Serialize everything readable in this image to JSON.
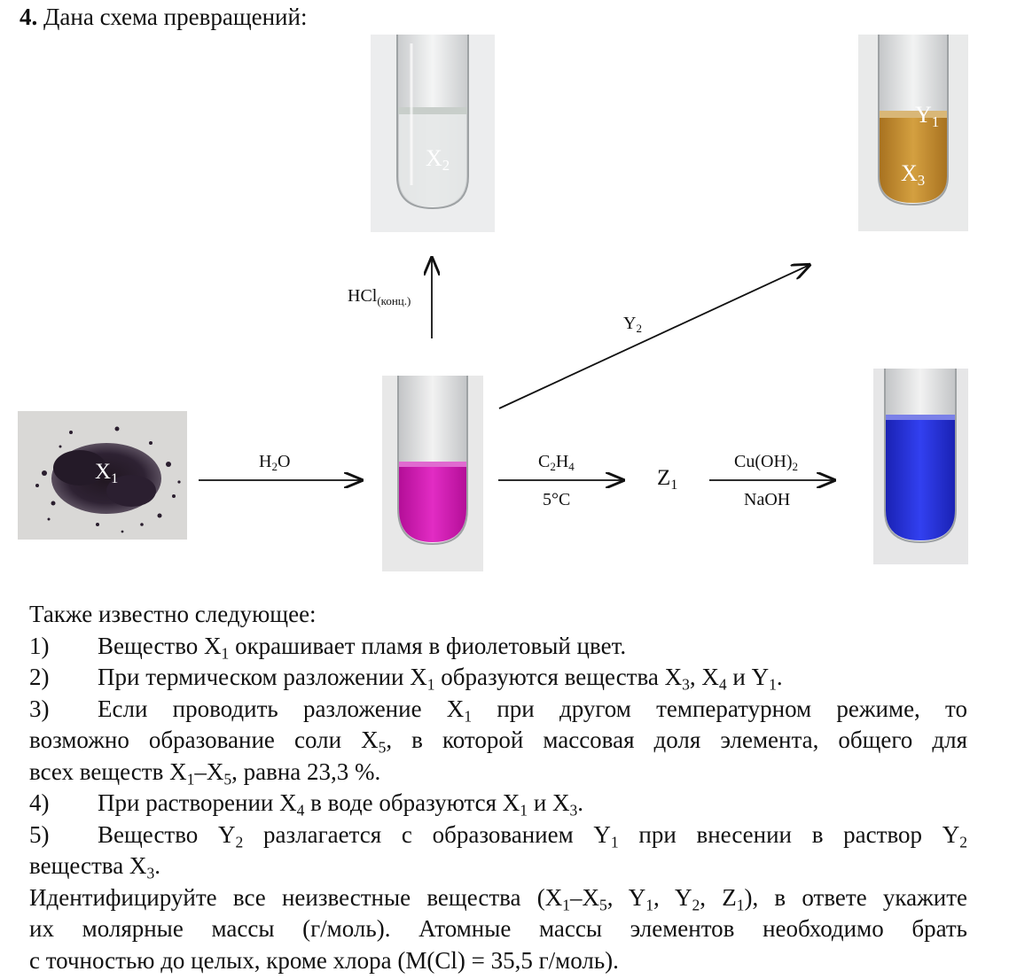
{
  "title": {
    "number": "4.",
    "text": " Дана схема превращений:"
  },
  "diagram": {
    "labels": {
      "x1": {
        "main": "X",
        "sub": "1"
      },
      "x2": {
        "main": "X",
        "sub": "2"
      },
      "x3": {
        "main": "X",
        "sub": "3"
      },
      "y1": {
        "main": "Y",
        "sub": "1"
      },
      "z1": {
        "main": "Z",
        "sub": "1"
      }
    },
    "arrows": {
      "h2o": {
        "pre": "H",
        "sub": "2",
        "post": "O"
      },
      "hcl": {
        "main": "HCl",
        "sub": "(конц.)"
      },
      "y2": {
        "main": "Y",
        "sub": "2"
      },
      "c2h4": {
        "p1": "C",
        "s1": "2",
        "p2": "H",
        "s2": "4"
      },
      "temp": "5°C",
      "cuoh2": {
        "main": "Cu(OH)",
        "sub": "2"
      },
      "naoh": "NaOH"
    },
    "colors": {
      "x1_powder": "#2a1e2e",
      "magenta_solution": "#d416b4",
      "orange_solution": "#c7922f",
      "blue_solution": "#2630e2"
    }
  },
  "text": {
    "intro": "Также известно следующее:",
    "items": [
      {
        "n": "1)",
        "parts": [
          "Вещество X",
          "1",
          " окрашивает пламя в фиолетовый цвет."
        ]
      },
      {
        "n": "2)",
        "parts": [
          "При термическом разложении X",
          "1",
          " образуются вещества X",
          "3",
          ", X",
          "4",
          " и Y",
          "1",
          "."
        ]
      },
      {
        "n": "3)",
        "parts": [
          "Если проводить разложение X",
          "1",
          " при другом температурном режиме, то"
        ],
        "cont": [
          [
            "возможно образование соли X",
            "5",
            ", в которой массовая доля элемента, общего для"
          ],
          [
            "всех веществ X",
            "1",
            "–X",
            "5",
            ", равна 23,3 %."
          ]
        ]
      },
      {
        "n": "4)",
        "parts": [
          "При растворении X",
          "4",
          " в воде образуются X",
          "1",
          " и X",
          "3",
          "."
        ]
      },
      {
        "n": "5)",
        "parts": [
          "Вещество Y",
          "2",
          " разлагается с образованием Y",
          "1",
          " при внесении в раствор Y",
          "2"
        ],
        "cont": [
          [
            "вещества X",
            "3",
            "."
          ]
        ]
      }
    ],
    "final": [
      [
        "Идентифицируйте все неизвестные вещества (X",
        "1",
        "–X",
        "5",
        ", Y",
        "1",
        ", Y",
        "2",
        ", Z",
        "1",
        "), в ответе укажите"
      ],
      [
        "их молярные массы (г/моль). Атомные массы элементов необходимо брать"
      ],
      [
        "с точностью до целых, кроме хлора (M(Cl) = 35,5 г/моль)."
      ]
    ]
  }
}
